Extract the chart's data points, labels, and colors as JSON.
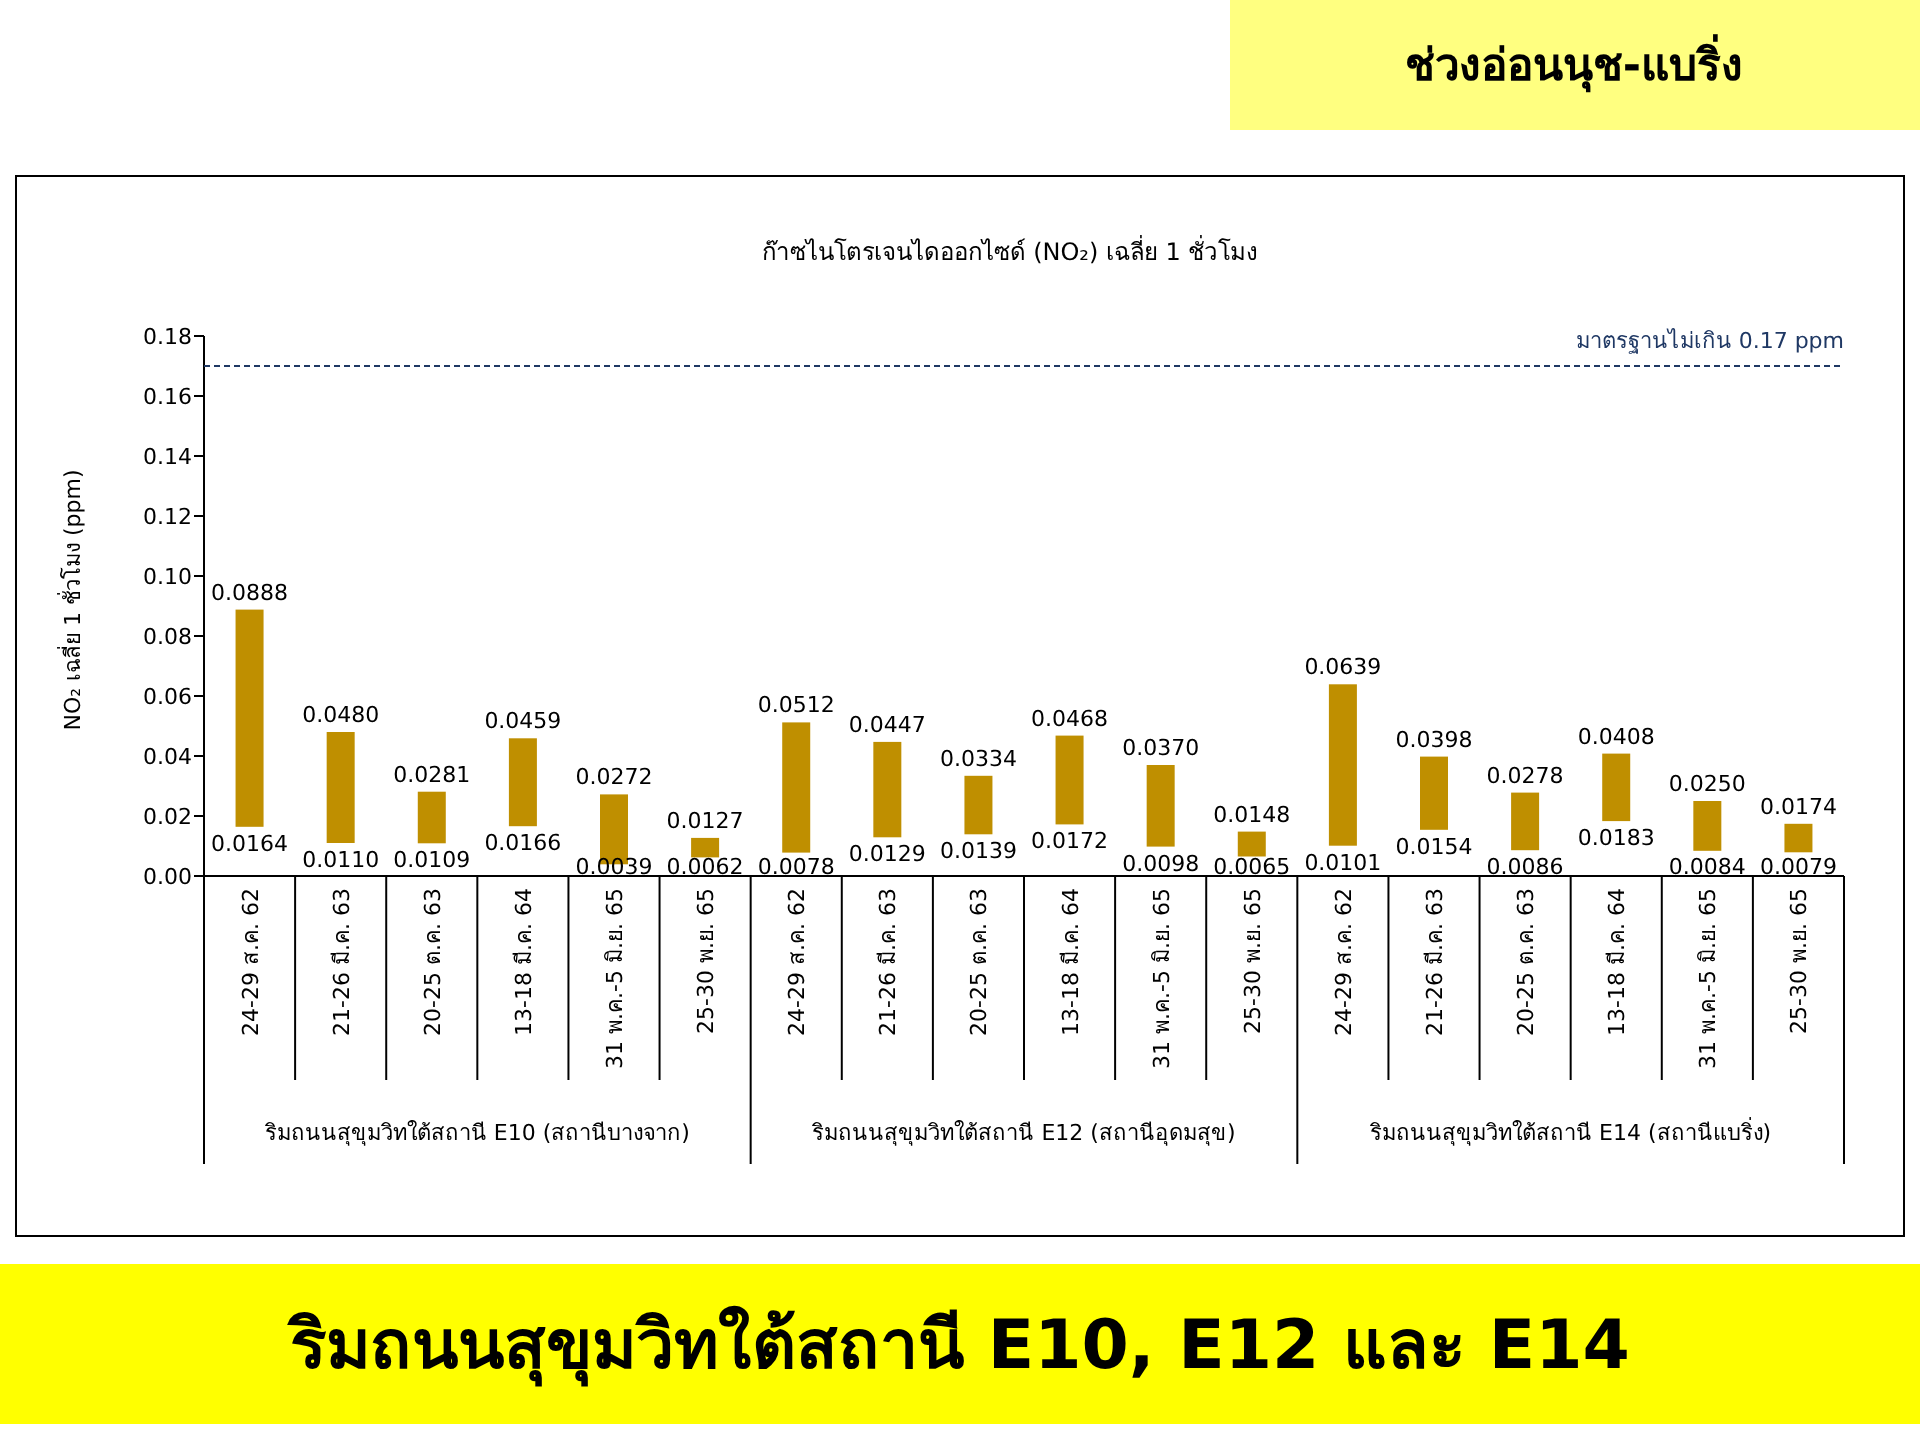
{
  "chart_data": {
    "type": "bar",
    "title": "ก๊าซไนโตรเจนไดออกไซด์ (NO₂) เฉลี่ย 1 ชั่วโมง",
    "ylabel": "NO₂  เฉลี่ย 1 ชั่วโมง (ppm)",
    "categories": [
      "24-29 ส.ค. 62",
      "21-26 มี.ค. 63",
      "20-25 ต.ค. 63",
      "13-18 มี.ค. 64",
      "31 พ.ค.-5 มิ.ย. 65",
      "25-30 พ.ย. 65",
      "24-29 ส.ค. 62",
      "21-26 มี.ค. 63",
      "20-25 ต.ค. 63",
      "13-18 มี.ค. 64",
      "31 พ.ค.-5 มิ.ย. 65",
      "25-30 พ.ย. 65",
      "24-29 ส.ค. 62",
      "21-26 มี.ค. 63",
      "20-25 ต.ค. 63",
      "13-18 มี.ค. 64",
      "31 พ.ค.-5 มิ.ย. 65",
      "25-30 พ.ย. 65"
    ],
    "base": [
      0.0164,
      0.011,
      0.0109,
      0.0166,
      0.0039,
      0.0062,
      0.0078,
      0.0129,
      0.0139,
      0.0172,
      0.0098,
      0.0065,
      0.0101,
      0.0154,
      0.0086,
      0.0183,
      0.0084,
      0.0079
    ],
    "values": [
      0.0724,
      0.037,
      0.0172,
      0.0293,
      0.0233,
      0.0065,
      0.0434,
      0.0318,
      0.0195,
      0.0296,
      0.0272,
      0.0083,
      0.0538,
      0.0244,
      0.0192,
      0.0225,
      0.0166,
      0.0095
    ],
    "value_labels": [
      "0.0888",
      "0.0480",
      "0.0281",
      "0.0459",
      "0.0272",
      "0.0127",
      "0.0512",
      "0.0447",
      "0.0334",
      "0.0468",
      "0.0370",
      "0.0148",
      "0.0639",
      "0.0398",
      "0.0278",
      "0.0408",
      "0.0250",
      "0.0174"
    ],
    "color": "#bf8f00",
    "ylim": [
      0,
      0.18
    ],
    "yticks": [
      {
        "value": 0,
        "label": "0.00"
      },
      {
        "value": 0.02,
        "label": "0.02"
      },
      {
        "value": 0.04,
        "label": "0.04"
      },
      {
        "value": 0.06,
        "label": "0.06"
      },
      {
        "value": 0.08,
        "label": "0.08"
      },
      {
        "value": 0.1,
        "label": "0.10"
      },
      {
        "value": 0.12,
        "label": "0.12"
      },
      {
        "value": 0.14,
        "label": "0.14"
      },
      {
        "value": 0.16,
        "label": "0.16"
      },
      {
        "value": 0.18,
        "label": "0.18"
      }
    ],
    "ref_lines": [
      {
        "axis": "y",
        "value": 0.17,
        "label": "มาตรฐานไม่เกิน 0.17 ppm",
        "color": "#1f3864",
        "line_style": "dashed"
      }
    ],
    "annotations": [
      "ช่วงอ่อนนุช-แบริ่ง",
      "ริมถนนสุขุมวิทใต้สถานี E10, E12 และ E14",
      "ริมถนนสุขุมวิทใต้สถานี E10 (สถานีบางจาก)",
      "ริมถนนสุขุมวิทใต้สถานี E12 (สถานีอุดมสุข)",
      "ริมถนนสุขุมวิทใต้สถานี E14 (สถานีแบริ่ง)",
      "0.0164",
      "0.0110",
      "0.0109",
      "0.0166",
      "0.0039",
      "0.0062",
      "0.0078",
      "0.0129",
      "0.0139",
      "0.0172",
      "0.0098",
      "0.0065",
      "0.0101",
      "0.0154",
      "0.0086",
      "0.0183",
      "0.0084",
      "0.0079"
    ]
  }
}
